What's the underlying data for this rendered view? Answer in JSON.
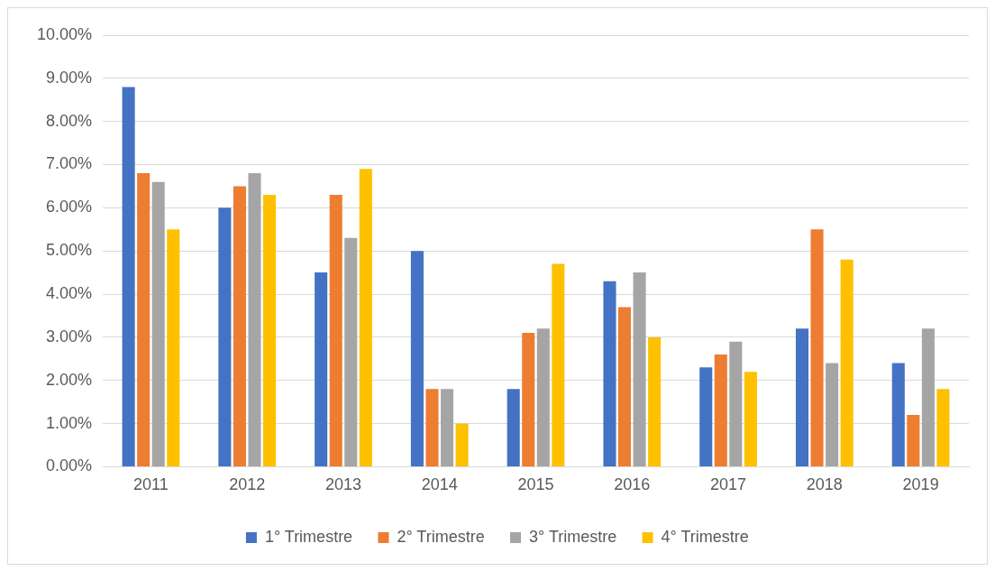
{
  "chart_data": {
    "type": "bar",
    "categories": [
      "2011",
      "2012",
      "2013",
      "2014",
      "2015",
      "2016",
      "2017",
      "2018",
      "2019"
    ],
    "series": [
      {
        "name": "1° Trimestre",
        "color": "#4472c4",
        "values": [
          8.8,
          6.0,
          4.5,
          5.0,
          1.8,
          4.3,
          2.3,
          3.2,
          2.4
        ]
      },
      {
        "name": "2° Trimestre",
        "color": "#ed7d31",
        "values": [
          6.8,
          6.5,
          6.3,
          1.8,
          3.1,
          3.7,
          2.6,
          5.5,
          1.2
        ]
      },
      {
        "name": "3° Trimestre",
        "color": "#a5a5a5",
        "values": [
          6.6,
          6.8,
          5.3,
          1.8,
          3.2,
          4.5,
          2.9,
          2.4,
          3.2
        ]
      },
      {
        "name": "4° Trimestre",
        "color": "#ffc000",
        "values": [
          5.5,
          6.3,
          6.9,
          1.0,
          4.7,
          3.0,
          2.2,
          4.8,
          1.8
        ]
      }
    ],
    "ylim": [
      0,
      10
    ],
    "yticks": [
      {
        "value": 0,
        "label": "0.00%"
      },
      {
        "value": 1,
        "label": "1.00%"
      },
      {
        "value": 2,
        "label": "2.00%"
      },
      {
        "value": 3,
        "label": "3.00%"
      },
      {
        "value": 4,
        "label": "4.00%"
      },
      {
        "value": 5,
        "label": "5.00%"
      },
      {
        "value": 6,
        "label": "6.00%"
      },
      {
        "value": 7,
        "label": "7.00%"
      },
      {
        "value": 8,
        "label": "8.00%"
      },
      {
        "value": 9,
        "label": "9.00%"
      },
      {
        "value": 10,
        "label": "10.00%"
      }
    ],
    "grid": "y",
    "legend": "bottom"
  }
}
